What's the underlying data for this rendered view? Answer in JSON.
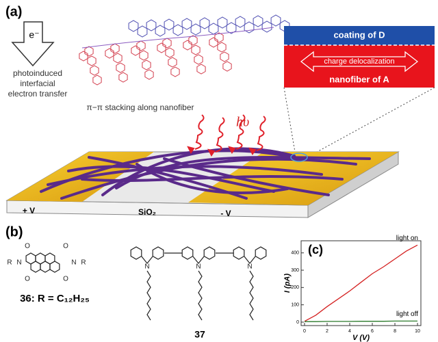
{
  "panel_a": {
    "label": "(a)",
    "electron": "e⁻",
    "transfer_caption": [
      "photoinduced",
      "interfacial",
      "electron transfer"
    ],
    "stacking_caption": "π−π stacking along nanofiber",
    "light": "hυ",
    "coating": "coating of D",
    "delocalization": "charge delocalization",
    "nanofiber": "nanofiber of A",
    "electrodes": {
      "positive": "+ V",
      "substrate": "SiO₂",
      "negative": "- V"
    }
  },
  "panel_b": {
    "label": "(b)",
    "r_group": "R",
    "nitrogen": "N",
    "oxygen": "O",
    "compound_36": "36: R = C₁₂H₂₅",
    "compound_37": "37"
  },
  "chart_data": {
    "type": "line",
    "label": "(c)",
    "x_label": "V (V)",
    "y_label": "I (pA)",
    "x": [
      0,
      1,
      2,
      3,
      4,
      5,
      6,
      7,
      8,
      9,
      10
    ],
    "series": [
      {
        "name": "light on",
        "color": "#d42020",
        "values": [
          5,
          40,
          90,
          135,
          180,
          230,
          280,
          320,
          365,
          410,
          445
        ]
      },
      {
        "name": "light off",
        "color": "#2a7a2a",
        "values": [
          3,
          3,
          4,
          4,
          4,
          5,
          5,
          5,
          6,
          6,
          6
        ]
      }
    ],
    "xlim": [
      -0.3,
      10.3
    ],
    "ylim": [
      -20,
      470
    ],
    "xticks": [
      0,
      2,
      4,
      6,
      8,
      10
    ],
    "yticks": [
      0,
      100,
      200,
      300,
      400
    ]
  }
}
